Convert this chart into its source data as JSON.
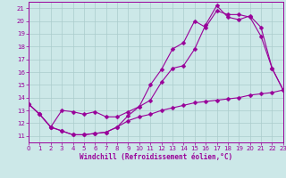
{
  "xlabel": "Windchill (Refroidissement éolien,°C)",
  "bg_color": "#cce8e8",
  "grid_color": "#aacccc",
  "line_color": "#990099",
  "line1_x": [
    0,
    1,
    2,
    3,
    4,
    5,
    6,
    7,
    8,
    9,
    10,
    11,
    12,
    13,
    14,
    15,
    16,
    17,
    18,
    19,
    20,
    21,
    22,
    23
  ],
  "line1_y": [
    13.5,
    12.7,
    11.7,
    11.4,
    11.1,
    11.1,
    11.2,
    11.3,
    11.7,
    12.6,
    13.3,
    15.0,
    16.2,
    17.8,
    18.3,
    20.0,
    19.5,
    20.8,
    20.5,
    20.5,
    20.3,
    18.8,
    16.3,
    14.6
  ],
  "line2_x": [
    0,
    1,
    2,
    3,
    4,
    5,
    6,
    7,
    8,
    9,
    10,
    11,
    12,
    13,
    14,
    15,
    16,
    17,
    18,
    19,
    20,
    21,
    22,
    23
  ],
  "line2_y": [
    13.5,
    12.7,
    11.7,
    13.0,
    12.9,
    12.7,
    12.9,
    12.5,
    12.5,
    12.9,
    13.3,
    13.8,
    15.2,
    16.3,
    16.5,
    17.8,
    19.7,
    21.2,
    20.3,
    20.1,
    20.4,
    19.5,
    16.3,
    14.6
  ],
  "line3_x": [
    0,
    1,
    2,
    3,
    4,
    5,
    6,
    7,
    8,
    9,
    10,
    11,
    12,
    13,
    14,
    15,
    16,
    17,
    18,
    19,
    20,
    21,
    22,
    23
  ],
  "line3_y": [
    13.5,
    12.7,
    11.7,
    11.4,
    11.1,
    11.1,
    11.2,
    11.3,
    11.7,
    12.2,
    12.5,
    12.7,
    13.0,
    13.2,
    13.4,
    13.6,
    13.7,
    13.8,
    13.9,
    14.0,
    14.2,
    14.3,
    14.4,
    14.6
  ],
  "xlim": [
    0,
    23
  ],
  "ylim": [
    10.5,
    21.5
  ],
  "yticks": [
    11,
    12,
    13,
    14,
    15,
    16,
    17,
    18,
    19,
    20,
    21
  ],
  "xticks": [
    0,
    1,
    2,
    3,
    4,
    5,
    6,
    7,
    8,
    9,
    10,
    11,
    12,
    13,
    14,
    15,
    16,
    17,
    18,
    19,
    20,
    21,
    22,
    23
  ]
}
